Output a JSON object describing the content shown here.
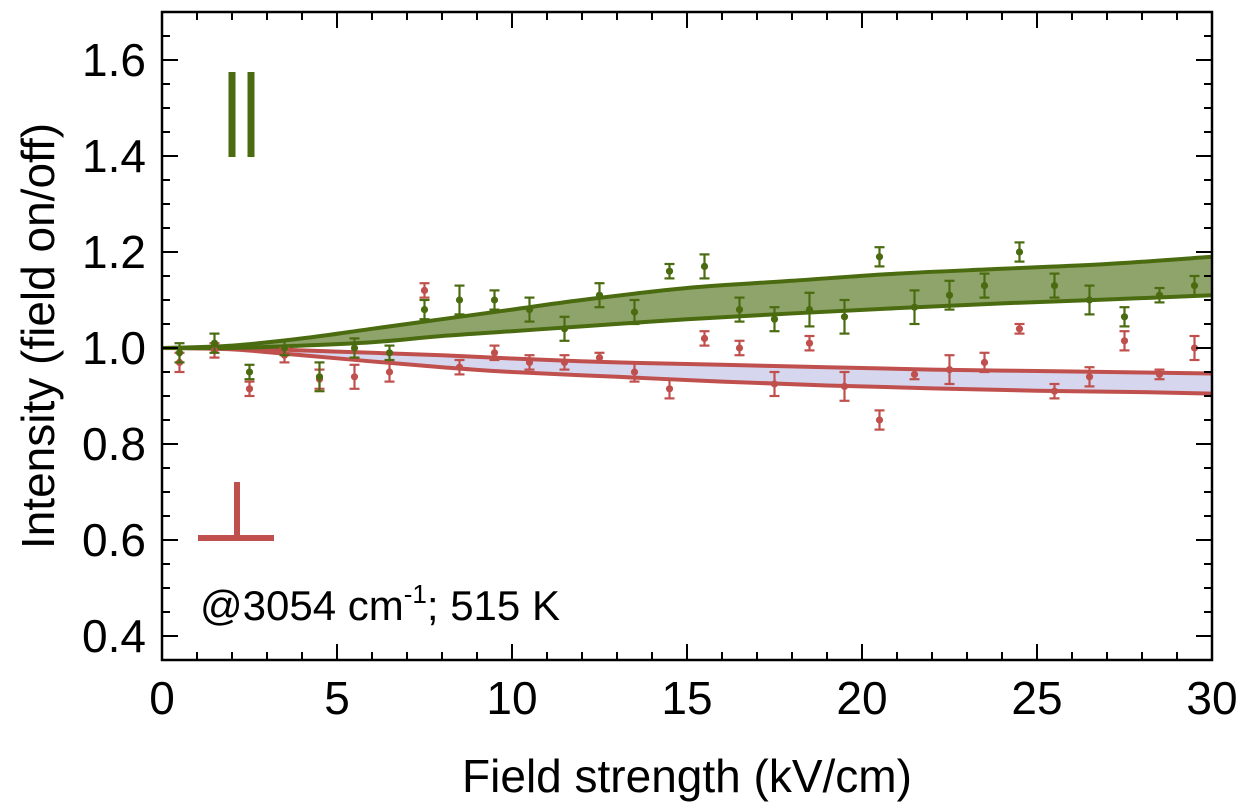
{
  "chart_data": {
    "type": "scatter",
    "xlabel": "Field strength (kV/cm)",
    "ylabel": "Intensity (field on/off)",
    "xlim": [
      0,
      30
    ],
    "ylim": [
      0.35,
      1.7
    ],
    "xticks": [
      "0",
      "5",
      "10",
      "15",
      "20",
      "25",
      "30"
    ],
    "yticks": [
      "0.4",
      "0.6",
      "0.8",
      "1.0",
      "1.2",
      "1.4",
      "1.6"
    ],
    "annotation": {
      "prefix": "@3054 cm",
      "superscript": "-1",
      "suffix": "; 515 K"
    },
    "legend": [
      {
        "symbol": "||",
        "series": "parallel",
        "placement": "top-left"
      },
      {
        "symbol": "⊥",
        "series": "perpendicular",
        "placement": "bottom-left"
      }
    ],
    "colors": {
      "parallel": "#4a6b10",
      "parallel_band": "#8fa46a",
      "perpendicular": "#c0504d",
      "perpendicular_band": "#d6d6ef"
    },
    "series": [
      {
        "id": "parallel",
        "x": [
          0.5,
          1.5,
          2.5,
          3.5,
          4.5,
          5.5,
          6.5,
          7.5,
          8.5,
          9.5,
          10.5,
          11.5,
          12.5,
          13.5,
          14.5,
          15.5,
          16.5,
          17.5,
          18.5,
          19.5,
          20.5,
          21.5,
          22.5,
          23.5,
          24.5,
          25.5,
          26.5,
          27.5,
          28.5,
          29.5
        ],
        "y": [
          0.99,
          1.01,
          0.95,
          1.0,
          0.94,
          1.0,
          0.99,
          1.08,
          1.1,
          1.1,
          1.08,
          1.04,
          1.11,
          1.075,
          1.16,
          1.17,
          1.08,
          1.06,
          1.08,
          1.065,
          1.19,
          1.085,
          1.11,
          1.13,
          1.2,
          1.13,
          1.1,
          1.065,
          1.11,
          1.13
        ],
        "err": [
          0.02,
          0.02,
          0.015,
          0.015,
          0.03,
          0.02,
          0.015,
          0.02,
          0.03,
          0.02,
          0.025,
          0.025,
          0.025,
          0.025,
          0.015,
          0.025,
          0.025,
          0.025,
          0.035,
          0.035,
          0.02,
          0.035,
          0.03,
          0.025,
          0.02,
          0.025,
          0.03,
          0.02,
          0.015,
          0.02
        ],
        "band_upper": [
          [
            0,
            1.0
          ],
          [
            2,
            1.005
          ],
          [
            4,
            1.02
          ],
          [
            6,
            1.04
          ],
          [
            8,
            1.06
          ],
          [
            10,
            1.08
          ],
          [
            12,
            1.1
          ],
          [
            15,
            1.125
          ],
          [
            18,
            1.14
          ],
          [
            21,
            1.155
          ],
          [
            24,
            1.165
          ],
          [
            27,
            1.175
          ],
          [
            30,
            1.19
          ]
        ],
        "band_lower": [
          [
            0,
            1.0
          ],
          [
            2,
            1.0
          ],
          [
            4,
            1.005
          ],
          [
            6,
            1.012
          ],
          [
            8,
            1.025
          ],
          [
            10,
            1.035
          ],
          [
            12,
            1.045
          ],
          [
            15,
            1.06
          ],
          [
            18,
            1.072
          ],
          [
            21,
            1.083
          ],
          [
            24,
            1.093
          ],
          [
            27,
            1.101
          ],
          [
            30,
            1.11
          ]
        ]
      },
      {
        "id": "perpendicular",
        "x": [
          0.5,
          1.5,
          2.5,
          3.5,
          4.5,
          5.5,
          6.5,
          7.5,
          8.5,
          9.5,
          10.5,
          11.5,
          12.5,
          13.5,
          14.5,
          15.5,
          16.5,
          17.5,
          18.5,
          19.5,
          20.5,
          21.5,
          22.5,
          23.5,
          24.5,
          25.5,
          26.5,
          27.5,
          28.5,
          29.5
        ],
        "y": [
          0.97,
          0.995,
          0.915,
          0.985,
          0.935,
          0.94,
          0.95,
          1.12,
          0.96,
          0.99,
          0.97,
          0.97,
          0.98,
          0.95,
          0.915,
          1.02,
          1.0,
          0.925,
          1.01,
          0.92,
          0.85,
          0.945,
          0.955,
          0.97,
          1.04,
          0.91,
          0.94,
          1.015,
          0.945,
          1.0
        ],
        "err": [
          0.02,
          0.015,
          0.015,
          0.015,
          0.02,
          0.025,
          0.02,
          0.015,
          0.015,
          0.015,
          0.015,
          0.015,
          0.01,
          0.02,
          0.02,
          0.015,
          0.015,
          0.025,
          0.015,
          0.03,
          0.02,
          0.01,
          0.03,
          0.02,
          0.01,
          0.015,
          0.02,
          0.02,
          0.01,
          0.025
        ],
        "band_upper": [
          [
            0,
            1.0
          ],
          [
            2,
            1.0
          ],
          [
            4,
            0.995
          ],
          [
            6,
            0.99
          ],
          [
            8,
            0.985
          ],
          [
            10,
            0.978
          ],
          [
            13,
            0.97
          ],
          [
            16,
            0.965
          ],
          [
            19,
            0.96
          ],
          [
            22,
            0.955
          ],
          [
            25,
            0.952
          ],
          [
            28,
            0.949
          ],
          [
            30,
            0.947
          ]
        ],
        "band_lower": [
          [
            0,
            1.0
          ],
          [
            2,
            0.997
          ],
          [
            4,
            0.985
          ],
          [
            6,
            0.972
          ],
          [
            8,
            0.96
          ],
          [
            10,
            0.95
          ],
          [
            13,
            0.94
          ],
          [
            16,
            0.93
          ],
          [
            19,
            0.922
          ],
          [
            22,
            0.916
          ],
          [
            25,
            0.911
          ],
          [
            28,
            0.908
          ],
          [
            30,
            0.905
          ]
        ]
      }
    ]
  }
}
